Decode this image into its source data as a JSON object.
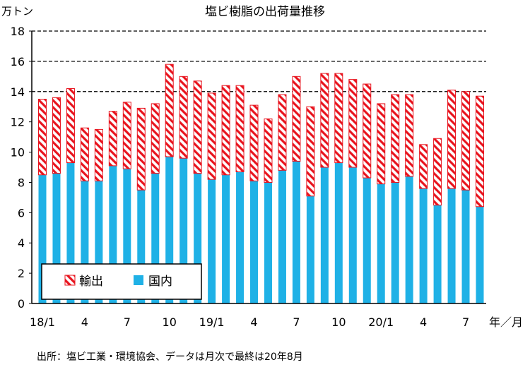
{
  "chart_data": {
    "type": "bar",
    "stacked": true,
    "title": "塩ビ樹脂の出荷量推移",
    "y_unit_label": "万トン",
    "x_unit_label": "年／月",
    "ylim": [
      0,
      18
    ],
    "y_ticks": [
      0,
      2,
      4,
      6,
      8,
      10,
      12,
      14,
      16,
      18
    ],
    "grid": "dashed horizontal lines at 14, 16, 18",
    "legend_position": "bottom-left",
    "categories": [
      "18/1",
      "18/2",
      "18/3",
      "18/4",
      "18/5",
      "18/6",
      "18/7",
      "18/8",
      "18/9",
      "18/10",
      "18/11",
      "18/12",
      "19/1",
      "19/2",
      "19/3",
      "19/4",
      "19/5",
      "19/6",
      "19/7",
      "19/8",
      "19/9",
      "19/10",
      "19/11",
      "19/12",
      "20/1",
      "20/2",
      "20/3",
      "20/4",
      "20/5",
      "20/6",
      "20/7",
      "20/8"
    ],
    "x_tick_labels": [
      {
        "index": 0,
        "label": "18/1"
      },
      {
        "index": 3,
        "label": "4"
      },
      {
        "index": 6,
        "label": "7"
      },
      {
        "index": 9,
        "label": "10"
      },
      {
        "index": 12,
        "label": "19/1"
      },
      {
        "index": 15,
        "label": "4"
      },
      {
        "index": 18,
        "label": "7"
      },
      {
        "index": 21,
        "label": "10"
      },
      {
        "index": 24,
        "label": "20/1"
      },
      {
        "index": 27,
        "label": "4"
      },
      {
        "index": 30,
        "label": "7"
      }
    ],
    "series": [
      {
        "name": "国内",
        "color": "#1fb1e6",
        "values": [
          8.5,
          8.6,
          9.3,
          8.1,
          8.1,
          9.1,
          8.9,
          7.5,
          8.6,
          9.7,
          9.6,
          8.6,
          8.2,
          8.5,
          8.7,
          8.1,
          8.0,
          8.8,
          9.4,
          7.1,
          9.0,
          9.3,
          9.0,
          8.3,
          7.9,
          8.0,
          8.4,
          7.6,
          6.5,
          7.6,
          7.5,
          6.4
        ]
      },
      {
        "name": "輸出",
        "color": "#e8141e",
        "pattern": "diagonal-hatch",
        "values": [
          5.0,
          5.0,
          4.9,
          3.5,
          3.4,
          3.6,
          4.4,
          5.4,
          4.6,
          6.1,
          5.4,
          6.1,
          5.7,
          5.9,
          5.7,
          5.0,
          4.2,
          5.0,
          5.6,
          5.9,
          6.2,
          5.9,
          5.8,
          6.2,
          5.3,
          5.8,
          5.4,
          2.9,
          4.4,
          6.5,
          6.5,
          7.3
        ]
      }
    ]
  },
  "source_note": "出所：塩ビ工業・環境協会、データは月次で最終は20年8月"
}
